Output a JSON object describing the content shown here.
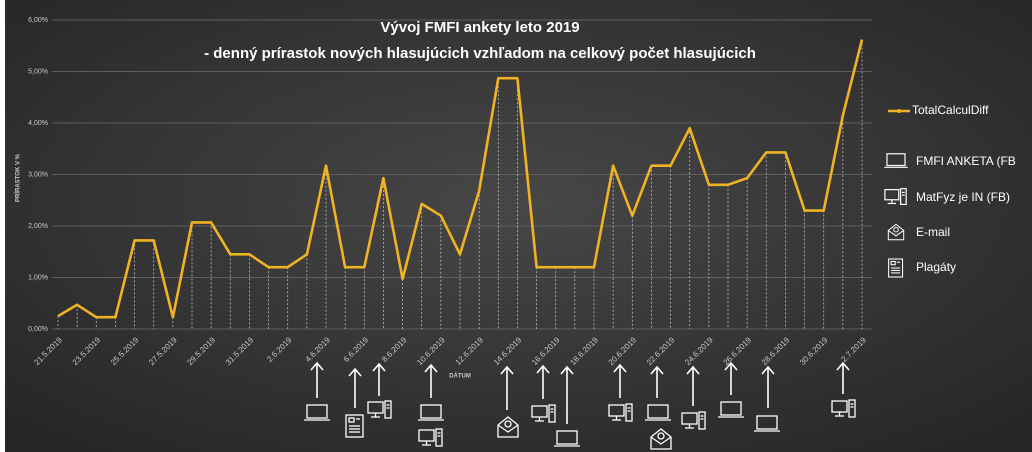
{
  "chart_data": {
    "type": "line",
    "title": "Vývoj FMFI ankety leto 2019",
    "subtitle": "- denný prírastok nových hlasujúcich vzhľadom na celkový počet hlasujúcich",
    "y_label": "PRÍRASTOK V %",
    "x_label": "DÁTUM",
    "categories": [
      "21.5.2019",
      null,
      "23.5.2019",
      null,
      "25.5.2019",
      null,
      "27.5.2019",
      null,
      "29.5.2019",
      null,
      "31.5.2019",
      null,
      "2.6.2019",
      null,
      "4.6.2019",
      null,
      "6.6.2019",
      null,
      "8.6.2019",
      null,
      "10.6.2019",
      null,
      "12.6.2019",
      null,
      "14.6.2019",
      null,
      "16.6.2019",
      null,
      "18.6.2019",
      null,
      "20.6.2019",
      null,
      "22.6.2019",
      null,
      "24.6.2019",
      null,
      "26.6.2019",
      null,
      "28.6.2019",
      null,
      "30.6.2019",
      null,
      "2.7.2019"
    ],
    "series": [
      {
        "name": "TotalCalculDiff",
        "color": "#f0b323",
        "values": [
          0.25,
          0.47,
          0.23,
          0.23,
          1.72,
          1.72,
          0.23,
          2.07,
          2.07,
          1.45,
          1.45,
          1.2,
          1.2,
          1.45,
          3.17,
          1.2,
          1.2,
          2.93,
          0.97,
          2.43,
          2.2,
          1.45,
          2.68,
          4.87,
          4.87,
          1.2,
          1.2,
          1.2,
          1.2,
          3.17,
          2.2,
          3.17,
          3.17,
          3.9,
          2.8,
          2.8,
          2.93,
          3.43,
          3.43,
          2.3,
          2.3,
          4.15,
          5.62
        ]
      }
    ],
    "ylim": [
      0,
      6
    ],
    "yticks": [
      {
        "value": 0,
        "label": "0,00%"
      },
      {
        "value": 1,
        "label": "1,00%"
      },
      {
        "value": 2,
        "label": "2,00%"
      },
      {
        "value": 3,
        "label": "3,00%"
      },
      {
        "value": 4,
        "label": "4,00%"
      },
      {
        "value": 5,
        "label": "5,00%"
      },
      {
        "value": 6,
        "label": "6,00%"
      }
    ],
    "grid": true,
    "legend": "right",
    "channels": [
      "FMFI ANKETA (FB",
      "MatFyz je IN (FB)",
      "E-mail",
      "Plagáty"
    ]
  }
}
